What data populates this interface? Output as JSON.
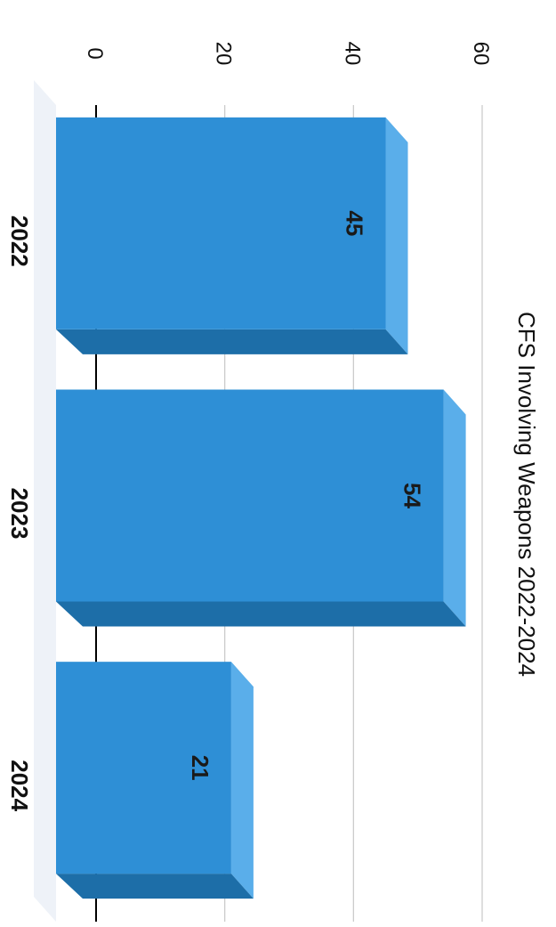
{
  "chart_data": {
    "type": "bar",
    "title": "CFS Involving Weapons 2022-2024",
    "categories": [
      "2022",
      "2023",
      "2024"
    ],
    "values": [
      45,
      54,
      21
    ],
    "data_labels": [
      "45",
      "54",
      "21"
    ],
    "ylim": [
      0,
      60
    ],
    "yticks": [
      "0",
      "20",
      "40",
      "60"
    ],
    "xlabel": "",
    "ylabel": "",
    "grid": true,
    "orientation": "rotated-90-clockwise",
    "style": "3d-bar",
    "colors": {
      "front": "#2e8fd6",
      "top": "#5aaeea",
      "side": "#1d6ea8",
      "grid": "#c8c8c8",
      "axis": "#000000"
    }
  }
}
